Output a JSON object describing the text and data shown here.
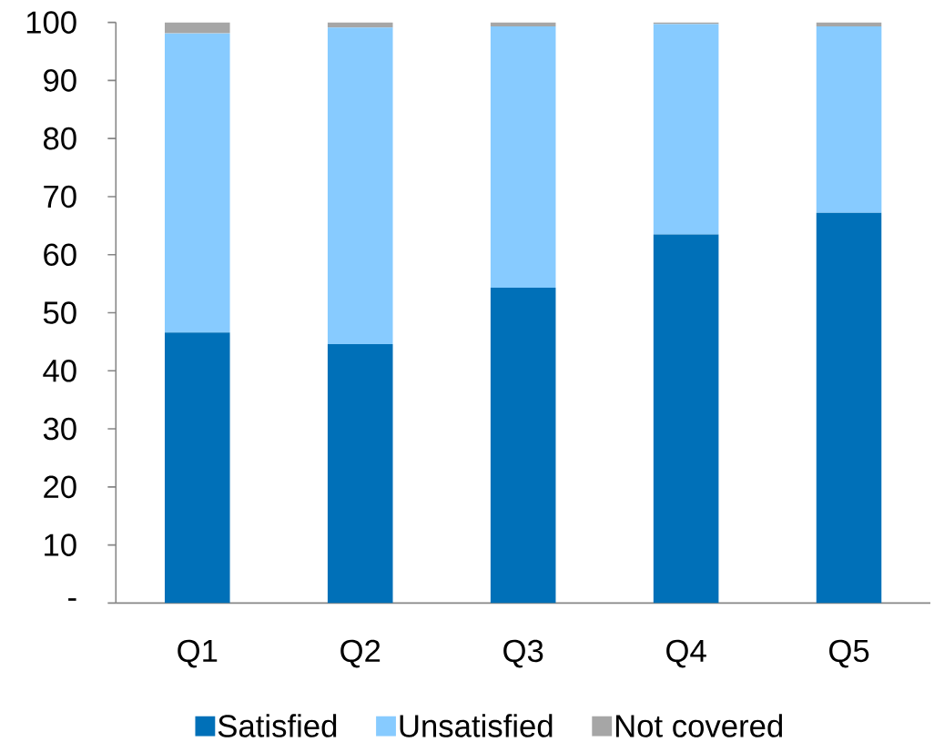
{
  "chart_data": {
    "type": "bar",
    "stacked": true,
    "categories": [
      "Q1",
      "Q2",
      "Q3",
      "Q4",
      "Q5"
    ],
    "series": [
      {
        "name": "Satisfied",
        "color": "#0070b8",
        "values": [
          46.6,
          44.6,
          54.3,
          63.5,
          67.2
        ]
      },
      {
        "name": "Unsatisfied",
        "color": "#87cbff",
        "values": [
          51.5,
          54.5,
          45.0,
          36.2,
          32.1
        ]
      },
      {
        "name": "Not covered",
        "color": "#a6a6a6",
        "values": [
          1.9,
          0.9,
          0.7,
          0.3,
          0.7
        ]
      }
    ],
    "ylim": [
      0,
      100
    ],
    "yticks": [
      {
        "value": 0,
        "label": "-"
      },
      10,
      20,
      30,
      40,
      50,
      60,
      70,
      80,
      90,
      100
    ],
    "legend": "bottom"
  }
}
